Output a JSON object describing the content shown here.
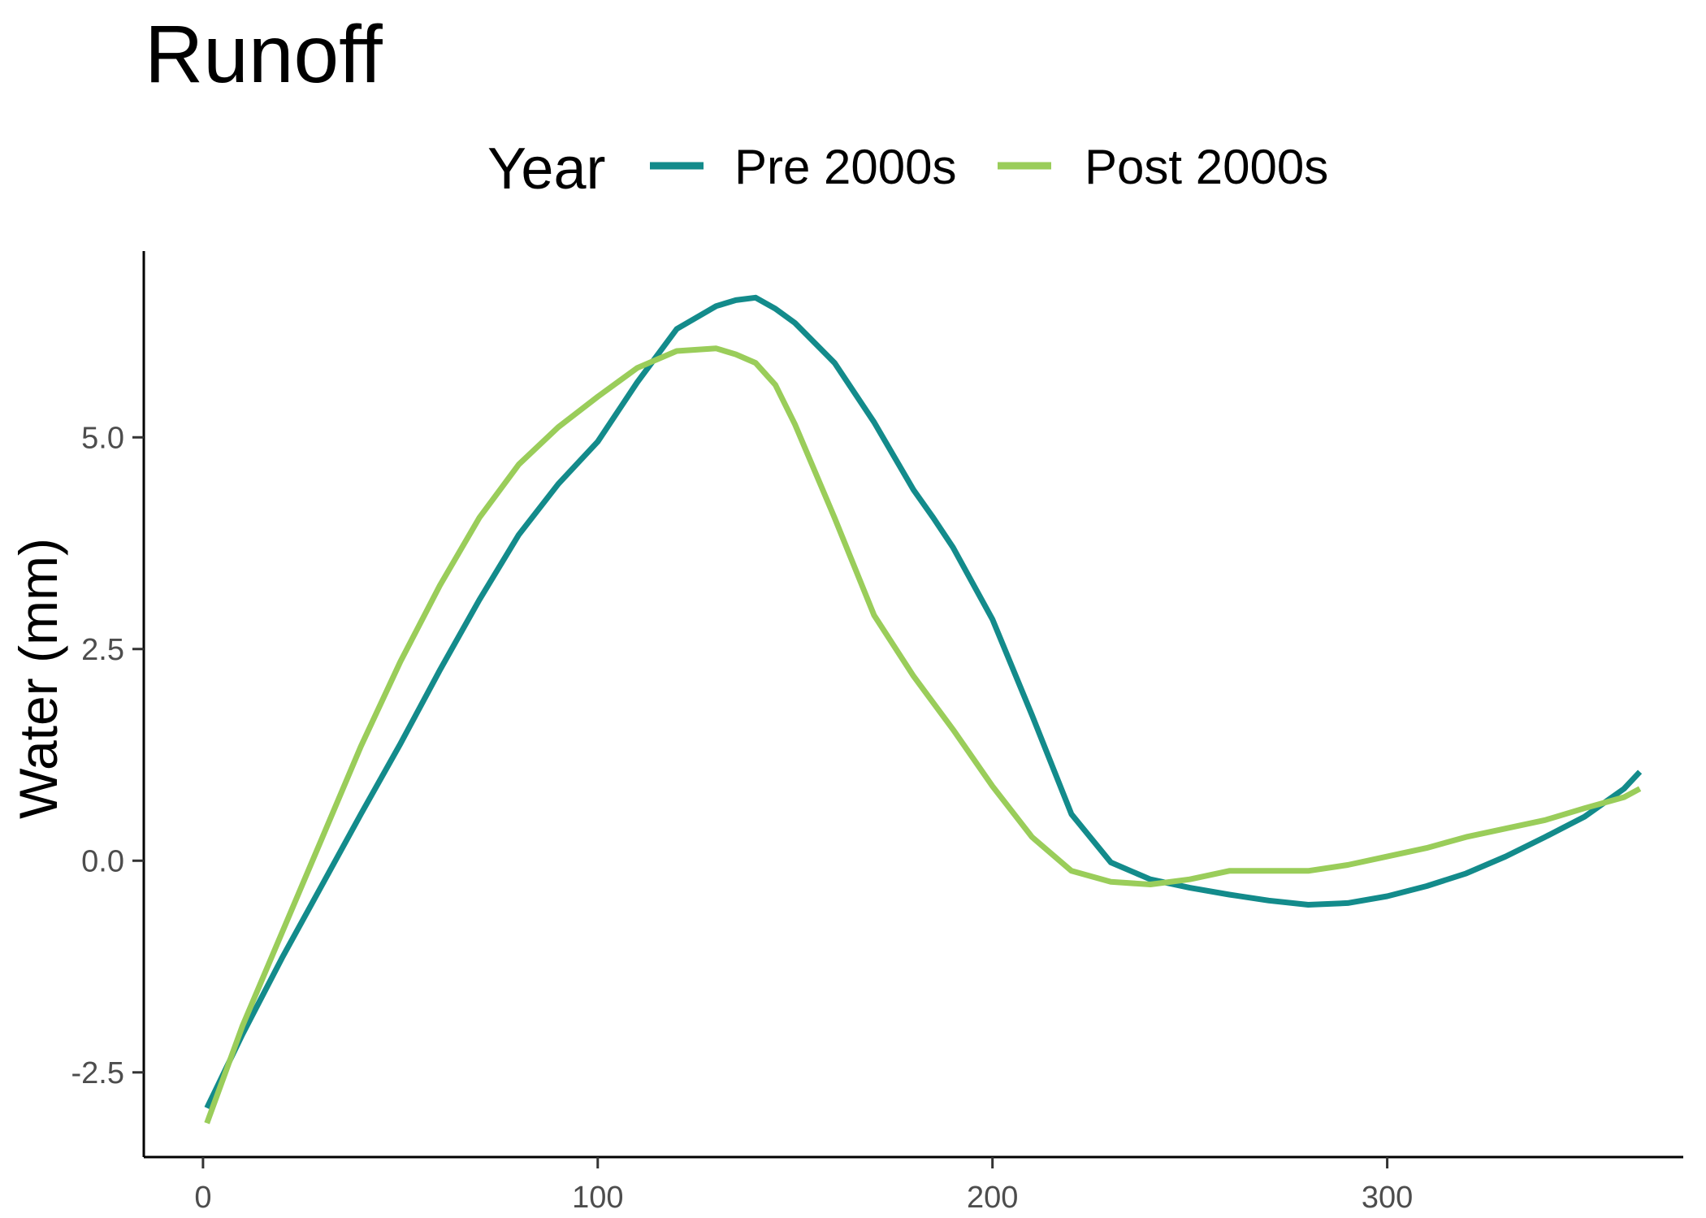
{
  "chart_data": {
    "type": "line",
    "title": "Runoff",
    "xlabel": "",
    "ylabel": "Water (mm)",
    "xlim": [
      -15,
      375
    ],
    "ylim": [
      -3.5,
      7.2
    ],
    "x_ticks": [
      0,
      100,
      200,
      300
    ],
    "x_tick_labels": [
      "0",
      "100",
      "200",
      "300"
    ],
    "y_ticks": [
      -2.5,
      0,
      2.5,
      5
    ],
    "y_tick_labels": [
      "-2.5",
      "0.0",
      "2.5",
      "5.0"
    ],
    "grid": false,
    "legend": {
      "title": "Year",
      "position": "top",
      "entries": [
        "Pre 2000s",
        "Post 2000s"
      ]
    },
    "series": [
      {
        "name": "Pre 2000s",
        "color": "#138B8B",
        "x": [
          1,
          10,
          20,
          30,
          40,
          50,
          60,
          70,
          80,
          90,
          100,
          110,
          120,
          130,
          135,
          140,
          145,
          150,
          160,
          170,
          180,
          185,
          190,
          200,
          210,
          220,
          230,
          240,
          250,
          260,
          270,
          280,
          290,
          300,
          310,
          320,
          330,
          340,
          350,
          360,
          364
        ],
        "y": [
          -2.92,
          -2.05,
          -1.15,
          -0.3,
          0.55,
          1.38,
          2.25,
          3.08,
          3.85,
          4.45,
          4.95,
          5.65,
          6.28,
          6.55,
          6.62,
          6.65,
          6.52,
          6.35,
          5.88,
          5.18,
          4.38,
          4.05,
          3.7,
          2.85,
          1.72,
          0.55,
          -0.02,
          -0.22,
          -0.32,
          -0.4,
          -0.47,
          -0.52,
          -0.5,
          -0.42,
          -0.3,
          -0.15,
          0.05,
          0.28,
          0.52,
          0.85,
          1.05
        ]
      },
      {
        "name": "Post 2000s",
        "color": "#9ACD5A",
        "x": [
          1,
          10,
          20,
          30,
          40,
          50,
          60,
          70,
          80,
          90,
          100,
          110,
          120,
          130,
          135,
          140,
          145,
          150,
          160,
          170,
          180,
          190,
          200,
          210,
          220,
          230,
          240,
          250,
          260,
          270,
          280,
          290,
          300,
          310,
          320,
          330,
          340,
          350,
          360,
          364
        ],
        "y": [
          -3.1,
          -1.95,
          -0.85,
          0.25,
          1.35,
          2.35,
          3.25,
          4.05,
          4.68,
          5.12,
          5.48,
          5.82,
          6.02,
          6.05,
          5.98,
          5.88,
          5.62,
          5.15,
          4.05,
          2.9,
          2.18,
          1.55,
          0.88,
          0.28,
          -0.12,
          -0.25,
          -0.28,
          -0.22,
          -0.12,
          -0.12,
          -0.12,
          -0.05,
          0.05,
          0.15,
          0.28,
          0.38,
          0.48,
          0.62,
          0.75,
          0.85
        ]
      }
    ]
  }
}
